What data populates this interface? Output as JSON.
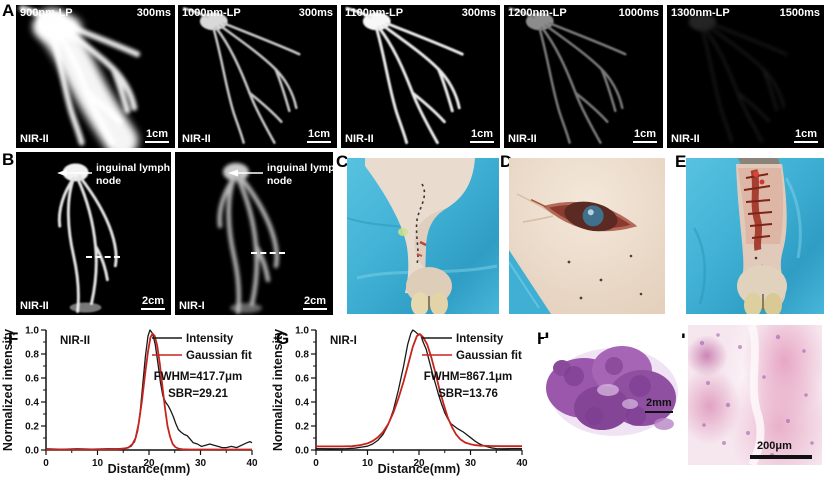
{
  "panels": {
    "A": {
      "label": "A",
      "images": [
        {
          "filter": "900nm-LP",
          "exposure": "300ms",
          "modality": "NIR-II",
          "scalebar": "1cm"
        },
        {
          "filter": "1000nm-LP",
          "exposure": "300ms",
          "modality": "NIR-II",
          "scalebar": "1cm"
        },
        {
          "filter": "1100nm-LP",
          "exposure": "300ms",
          "modality": "NIR-II",
          "scalebar": "1cm"
        },
        {
          "filter": "1200nm-LP",
          "exposure": "1000ms",
          "modality": "NIR-II",
          "scalebar": "1cm"
        },
        {
          "filter": "1300nm-LP",
          "exposure": "1500ms",
          "modality": "NIR-II",
          "scalebar": "1cm"
        }
      ]
    },
    "B": {
      "label": "B",
      "annotation_line1": "inguinal lymph",
      "annotation_line2": "node",
      "images": [
        {
          "modality": "NIR-II",
          "scalebar": "2cm"
        },
        {
          "modality": "NIR-I",
          "scalebar": "2cm"
        }
      ]
    },
    "C": {
      "label": "C"
    },
    "D": {
      "label": "D"
    },
    "E": {
      "label": "E"
    },
    "F": {
      "label": "F"
    },
    "G": {
      "label": "G"
    },
    "H": {
      "label": "H",
      "scalebar": "2mm"
    },
    "I": {
      "label": "I",
      "scalebar": "200μm"
    }
  },
  "colors": {
    "intensity_line": "#1a1a1a",
    "gaussian_line": "#c8241e",
    "drape_blue": "#45b4d7",
    "histology_purple": "#9152a4"
  },
  "chart_data": [
    {
      "id": "F",
      "type": "line",
      "inside_label": "NIR-II",
      "xlabel": "Distance(mm)",
      "ylabel": "Normalized intensity",
      "xlim": [
        0,
        40
      ],
      "ylim": [
        0.0,
        1.0
      ],
      "xticks": [
        0,
        10,
        20,
        30,
        40
      ],
      "yticks": [
        0.0,
        0.2,
        0.4,
        0.6,
        0.8,
        1.0
      ],
      "grid": false,
      "legend_position": "top-right",
      "annotations": [
        "FWHM=417.7μm",
        "SBR=29.21"
      ],
      "series": [
        {
          "name": "Intensity",
          "color": "#1a1a1a",
          "points": [
            [
              0,
              0.01
            ],
            [
              3,
              0.006
            ],
            [
              6,
              0.01
            ],
            [
              9,
              0.007
            ],
            [
              12,
              0.01
            ],
            [
              14,
              0.01
            ],
            [
              15.5,
              0.015
            ],
            [
              16.5,
              0.03
            ],
            [
              17.2,
              0.07
            ],
            [
              17.8,
              0.16
            ],
            [
              18.3,
              0.32
            ],
            [
              18.8,
              0.55
            ],
            [
              19.3,
              0.78
            ],
            [
              19.8,
              0.95
            ],
            [
              20.2,
              1.0
            ],
            [
              20.7,
              0.97
            ],
            [
              21.2,
              0.88
            ],
            [
              21.7,
              0.73
            ],
            [
              22.2,
              0.57
            ],
            [
              22.7,
              0.45
            ],
            [
              23.2,
              0.4
            ],
            [
              23.7,
              0.37
            ],
            [
              24.2,
              0.33
            ],
            [
              24.7,
              0.28
            ],
            [
              25.2,
              0.22
            ],
            [
              25.7,
              0.17
            ],
            [
              26.2,
              0.15
            ],
            [
              26.8,
              0.13
            ],
            [
              27.4,
              0.12
            ],
            [
              28,
              0.09
            ],
            [
              28.6,
              0.06
            ],
            [
              29.4,
              0.05
            ],
            [
              30.2,
              0.03
            ],
            [
              31,
              0.04
            ],
            [
              31.8,
              0.05
            ],
            [
              32.6,
              0.04
            ],
            [
              33.4,
              0.03
            ],
            [
              34.2,
              0.02
            ],
            [
              35,
              0.02
            ],
            [
              36,
              0.03
            ],
            [
              37,
              0.02
            ],
            [
              38,
              0.04
            ],
            [
              39,
              0.06
            ],
            [
              39.6,
              0.07
            ],
            [
              40,
              0.06
            ]
          ]
        },
        {
          "name": "Gaussian fit",
          "color": "#c8241e",
          "points": [
            [
              0,
              0.004
            ],
            [
              12,
              0.004
            ],
            [
              14,
              0.006
            ],
            [
              15,
              0.01
            ],
            [
              16,
              0.02
            ],
            [
              16.8,
              0.05
            ],
            [
              17.4,
              0.1
            ],
            [
              18,
              0.22
            ],
            [
              18.6,
              0.4
            ],
            [
              19.2,
              0.62
            ],
            [
              19.8,
              0.82
            ],
            [
              20.3,
              0.94
            ],
            [
              20.7,
              0.97
            ],
            [
              21.1,
              0.95
            ],
            [
              21.6,
              0.87
            ],
            [
              22.1,
              0.72
            ],
            [
              22.6,
              0.53
            ],
            [
              23.1,
              0.35
            ],
            [
              23.6,
              0.2
            ],
            [
              24.1,
              0.11
            ],
            [
              24.6,
              0.05
            ],
            [
              25.1,
              0.025
            ],
            [
              25.8,
              0.01
            ],
            [
              26.5,
              0.006
            ],
            [
              28,
              0.004
            ],
            [
              32,
              0.004
            ],
            [
              40,
              0.004
            ]
          ]
        }
      ]
    },
    {
      "id": "G",
      "type": "line",
      "inside_label": "NIR-I",
      "xlabel": "Distance(mm)",
      "ylabel": "Normalized intensity",
      "xlim": [
        0,
        40
      ],
      "ylim": [
        0.0,
        1.0
      ],
      "xticks": [
        0,
        10,
        20,
        30,
        40
      ],
      "yticks": [
        0.0,
        0.2,
        0.4,
        0.6,
        0.8,
        1.0
      ],
      "grid": false,
      "legend_position": "top-right",
      "annotations": [
        "FWHM=867.1μm",
        "SBR=13.76"
      ],
      "series": [
        {
          "name": "Intensity",
          "color": "#1a1a1a",
          "points": [
            [
              0,
              0.012
            ],
            [
              3,
              0.01
            ],
            [
              6,
              0.012
            ],
            [
              7.5,
              0.015
            ],
            [
              9,
              0.025
            ],
            [
              10,
              0.032
            ],
            [
              11,
              0.05
            ],
            [
              12,
              0.08
            ],
            [
              13,
              0.13
            ],
            [
              14,
              0.21
            ],
            [
              15,
              0.33
            ],
            [
              16,
              0.5
            ],
            [
              17,
              0.7
            ],
            [
              17.8,
              0.88
            ],
            [
              18.4,
              0.97
            ],
            [
              18.8,
              1.0
            ],
            [
              19.3,
              0.985
            ],
            [
              19.8,
              0.965
            ],
            [
              20.3,
              0.965
            ],
            [
              20.8,
              0.9
            ],
            [
              21.4,
              0.84
            ],
            [
              22,
              0.74
            ],
            [
              22.6,
              0.64
            ],
            [
              23.2,
              0.55
            ],
            [
              23.8,
              0.46
            ],
            [
              24.4,
              0.38
            ],
            [
              25,
              0.31
            ],
            [
              25.6,
              0.26
            ],
            [
              26.2,
              0.22
            ],
            [
              26.8,
              0.2
            ],
            [
              27.4,
              0.18
            ],
            [
              28,
              0.165
            ],
            [
              28.6,
              0.15
            ],
            [
              29.2,
              0.13
            ],
            [
              29.8,
              0.11
            ],
            [
              30.4,
              0.09
            ],
            [
              31,
              0.07
            ],
            [
              31.6,
              0.055
            ],
            [
              32.2,
              0.042
            ],
            [
              33,
              0.03
            ],
            [
              34,
              0.018
            ],
            [
              35,
              0.012
            ],
            [
              36.5,
              0.01
            ],
            [
              38,
              0.012
            ],
            [
              40,
              0.012
            ]
          ]
        },
        {
          "name": "Gaussian fit",
          "color": "#c8241e",
          "points": [
            [
              0,
              0.03
            ],
            [
              5,
              0.03
            ],
            [
              7,
              0.032
            ],
            [
              8.5,
              0.04
            ],
            [
              10,
              0.055
            ],
            [
              11,
              0.075
            ],
            [
              12,
              0.105
            ],
            [
              13,
              0.15
            ],
            [
              14,
              0.215
            ],
            [
              15,
              0.31
            ],
            [
              16,
              0.43
            ],
            [
              17,
              0.57
            ],
            [
              18,
              0.73
            ],
            [
              18.8,
              0.86
            ],
            [
              19.6,
              0.95
            ],
            [
              20.2,
              0.965
            ],
            [
              20.8,
              0.94
            ],
            [
              21.6,
              0.88
            ],
            [
              22.4,
              0.77
            ],
            [
              23.2,
              0.64
            ],
            [
              24,
              0.5
            ],
            [
              24.8,
              0.38
            ],
            [
              25.6,
              0.27
            ],
            [
              26.4,
              0.19
            ],
            [
              27.2,
              0.13
            ],
            [
              28,
              0.09
            ],
            [
              29,
              0.062
            ],
            [
              30,
              0.048
            ],
            [
              31,
              0.04
            ],
            [
              32,
              0.036
            ],
            [
              34,
              0.033
            ],
            [
              36,
              0.032
            ],
            [
              38,
              0.032
            ],
            [
              40,
              0.032
            ]
          ]
        }
      ]
    }
  ]
}
